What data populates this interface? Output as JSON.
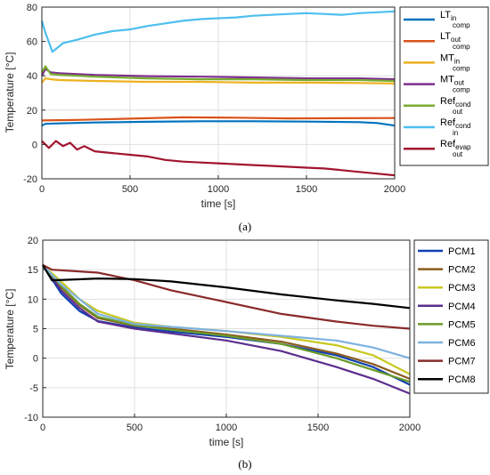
{
  "chart_data": [
    {
      "type": "line",
      "panel_label": "(a)",
      "xlabel": "time [s]",
      "ylabel": "Temperature [°C]",
      "xlim": [
        0,
        2000
      ],
      "ylim": [
        -20,
        80
      ],
      "xticks": [
        0,
        500,
        1000,
        1500,
        2000
      ],
      "yticks": [
        -20,
        0,
        20,
        40,
        60,
        80
      ],
      "grid": true,
      "legend": "outside-right",
      "series": [
        {
          "base": "LT",
          "sub": "in",
          "sub2": "comp",
          "color": "#0072bd",
          "x": [
            0,
            20,
            100,
            300,
            600,
            900,
            1200,
            1500,
            1800,
            1900,
            2000
          ],
          "y": [
            11,
            12,
            12.3,
            12.8,
            13.2,
            13.5,
            13.5,
            13.3,
            13,
            12.5,
            11
          ]
        },
        {
          "base": "LT",
          "sub": "out",
          "sub2": "comp",
          "color": "#d95319",
          "x": [
            0,
            200,
            500,
            800,
            1100,
            1400,
            1700,
            2000
          ],
          "y": [
            14,
            14.3,
            15,
            15.8,
            15.6,
            15.2,
            15.3,
            15.4
          ]
        },
        {
          "base": "MT",
          "sub": "in",
          "sub2": "comp",
          "color": "#edb120",
          "x": [
            0,
            20,
            50,
            100,
            300,
            600,
            900,
            1200,
            1500,
            1800,
            2000
          ],
          "y": [
            36,
            38.5,
            38,
            37.5,
            37,
            36.5,
            36.5,
            36,
            36,
            35.8,
            35.5
          ]
        },
        {
          "base": "MT",
          "sub": "out",
          "sub2": "comp",
          "color": "#7e2f8e",
          "x": [
            0,
            20,
            50,
            100,
            300,
            600,
            900,
            1200,
            1500,
            1800,
            2000
          ],
          "y": [
            40,
            44,
            42,
            41.5,
            40.5,
            39.8,
            39.5,
            39,
            38.5,
            38.5,
            38
          ]
        },
        {
          "base": "Ref",
          "sub": "cond",
          "sub2": "out",
          "color": "#77ac30",
          "x": [
            0,
            20,
            50,
            100,
            300,
            600,
            900,
            1200,
            1500,
            1800,
            2000
          ],
          "y": [
            42,
            45.5,
            41,
            40.5,
            39.5,
            38.5,
            38,
            38,
            37.5,
            37.5,
            37
          ]
        },
        {
          "base": "Ref",
          "sub": "cond",
          "sub2": "in",
          "color": "#4dbeee",
          "x": [
            0,
            20,
            60,
            120,
            200,
            300,
            400,
            500,
            600,
            700,
            800,
            900,
            1000,
            1100,
            1200,
            1300,
            1400,
            1500,
            1600,
            1700,
            1800,
            1900,
            2000
          ],
          "y": [
            72,
            65,
            54,
            59,
            61,
            64,
            66,
            67,
            69,
            70.5,
            72,
            73,
            73.5,
            74,
            75,
            75.5,
            76,
            76.5,
            76,
            75.5,
            76.5,
            77,
            77.5
          ]
        },
        {
          "base": "Ref",
          "sub": "evap",
          "sub2": "out",
          "color": "#a2142f",
          "x": [
            0,
            40,
            80,
            120,
            160,
            200,
            240,
            300,
            400,
            500,
            600,
            700,
            800,
            900,
            1000,
            1100,
            1200,
            1300,
            1400,
            1500,
            1600,
            1700,
            1800,
            1900,
            2000
          ],
          "y": [
            2,
            -2,
            2,
            -1,
            1,
            -3,
            -1,
            -4,
            -5,
            -6,
            -7,
            -9,
            -10,
            -10.5,
            -11,
            -11.5,
            -12,
            -12.5,
            -13,
            -13.5,
            -14,
            -15,
            -16,
            -17,
            -18
          ]
        }
      ]
    },
    {
      "type": "line",
      "panel_label": "(b)",
      "xlabel": "time [s]",
      "ylabel": "Temperature [°C]",
      "xlim": [
        0,
        2000
      ],
      "ylim": [
        -10,
        20
      ],
      "xticks": [
        0,
        500,
        1000,
        1500,
        2000
      ],
      "yticks": [
        -10,
        -5,
        0,
        5,
        10,
        15,
        20
      ],
      "grid": true,
      "legend": "outside-right",
      "series": [
        {
          "name": "PCM1",
          "color": "#0f3fb4",
          "x": [
            0,
            100,
            200,
            300,
            500,
            700,
            1000,
            1300,
            1600,
            1800,
            2000
          ],
          "y": [
            15.8,
            11,
            8,
            6.3,
            5.2,
            4.5,
            3.6,
            2.4,
            0.5,
            -1.5,
            -4.5
          ]
        },
        {
          "name": "PCM2",
          "color": "#8a5c1c",
          "x": [
            0,
            100,
            200,
            300,
            500,
            700,
            1000,
            1300,
            1600,
            1800,
            2000
          ],
          "y": [
            15.8,
            12,
            9,
            6.8,
            5.5,
            5,
            4,
            2.8,
            0.8,
            -1,
            -3.5
          ]
        },
        {
          "name": "PCM3",
          "color": "#c8c820",
          "x": [
            0,
            100,
            200,
            300,
            500,
            700,
            1000,
            1300,
            1600,
            1800,
            2000
          ],
          "y": [
            15.8,
            13,
            10,
            8,
            6,
            5.3,
            4.6,
            3.6,
            2.2,
            0.5,
            -2.7
          ]
        },
        {
          "name": "PCM4",
          "color": "#5a2e8e",
          "x": [
            0,
            100,
            200,
            300,
            500,
            700,
            1000,
            1300,
            1600,
            1800,
            2000
          ],
          "y": [
            15.8,
            11.5,
            8.5,
            6.2,
            5,
            4.2,
            3,
            1.2,
            -1.5,
            -3.5,
            -6
          ]
        },
        {
          "name": "PCM5",
          "color": "#6a9a2a",
          "x": [
            0,
            100,
            200,
            300,
            500,
            700,
            1000,
            1300,
            1600,
            1800,
            2000
          ],
          "y": [
            15.8,
            12.2,
            9.2,
            7,
            5.6,
            4.8,
            3.8,
            2.4,
            0,
            -2,
            -4
          ]
        },
        {
          "name": "PCM6",
          "color": "#7fb2e0",
          "x": [
            0,
            100,
            200,
            300,
            500,
            700,
            1000,
            1300,
            1600,
            1800,
            2000
          ],
          "y": [
            15.8,
            12.5,
            10,
            7.5,
            5.8,
            5.3,
            4.6,
            3.8,
            3,
            1.8,
            0
          ]
        },
        {
          "name": "PCM7",
          "color": "#8a2a2a",
          "x": [
            0,
            50,
            150,
            300,
            500,
            700,
            1000,
            1300,
            1600,
            1800,
            2000
          ],
          "y": [
            15.8,
            15,
            14.8,
            14.5,
            13.2,
            11.5,
            9.5,
            7.5,
            6.2,
            5.5,
            5
          ]
        },
        {
          "name": "PCM8",
          "color": "#000000",
          "x": [
            0,
            50,
            150,
            300,
            500,
            700,
            1000,
            1300,
            1600,
            1800,
            2000
          ],
          "y": [
            15.8,
            13.2,
            13.3,
            13.5,
            13.4,
            13,
            12,
            10.8,
            9.8,
            9.2,
            8.5
          ]
        }
      ]
    }
  ]
}
